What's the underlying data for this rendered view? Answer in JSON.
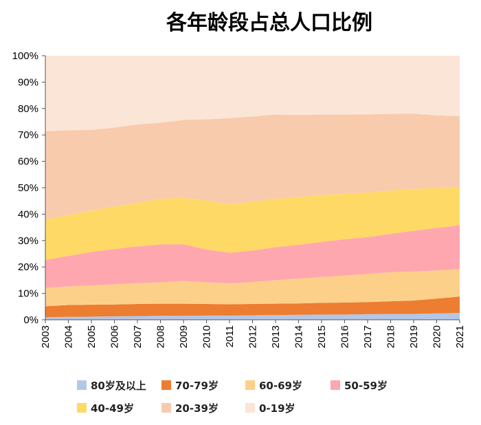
{
  "chart_data": {
    "type": "area",
    "stacked": true,
    "percent": true,
    "title": "各年龄段占总人口比例",
    "xlabel": "",
    "ylabel": "",
    "ylim": [
      0,
      100
    ],
    "y_ticks": [
      "0%",
      "10%",
      "20%",
      "30%",
      "40%",
      "50%",
      "60%",
      "70%",
      "80%",
      "90%",
      "100%"
    ],
    "categories": [
      "2003",
      "2004",
      "2005",
      "2006",
      "2007",
      "2008",
      "2009",
      "2010",
      "2011",
      "2012",
      "2013",
      "2014",
      "2015",
      "2016",
      "2017",
      "2018",
      "2019",
      "2020",
      "2021"
    ],
    "series": [
      {
        "name": "80岁及以上",
        "color": "#b4c7e7",
        "values": [
          1.0,
          1.1,
          1.2,
          1.3,
          1.4,
          1.5,
          1.5,
          1.6,
          1.6,
          1.7,
          1.8,
          1.9,
          2.0,
          2.0,
          2.1,
          2.2,
          2.2,
          2.4,
          2.6
        ]
      },
      {
        "name": "70-79岁",
        "color": "#ed7d31",
        "values": [
          4.1,
          4.5,
          4.5,
          4.5,
          4.6,
          4.6,
          4.6,
          4.4,
          4.3,
          4.3,
          4.3,
          4.3,
          4.4,
          4.5,
          4.6,
          4.8,
          5.1,
          5.6,
          6.2
        ]
      },
      {
        "name": "60-69岁",
        "color": "#fdd08a",
        "values": [
          7.0,
          7.0,
          7.3,
          7.6,
          7.9,
          8.1,
          8.6,
          8.2,
          7.9,
          8.3,
          8.9,
          9.4,
          9.8,
          10.2,
          10.7,
          11.0,
          11.0,
          10.7,
          10.4
        ]
      },
      {
        "name": "50-59岁",
        "color": "#ffa7ae",
        "values": [
          10.6,
          11.6,
          12.7,
          13.4,
          13.9,
          14.3,
          13.9,
          12.4,
          11.6,
          11.9,
          12.5,
          12.8,
          13.3,
          13.8,
          13.9,
          14.6,
          15.4,
          16.1,
          16.6
        ]
      },
      {
        "name": "40-49岁",
        "color": "#ffd966",
        "values": [
          15.2,
          15.5,
          15.7,
          16.1,
          16.5,
          17.3,
          17.6,
          18.6,
          18.4,
          18.5,
          18.3,
          18.1,
          17.8,
          17.2,
          16.9,
          16.4,
          15.9,
          15.1,
          14.2
        ]
      },
      {
        "name": "20-39岁",
        "color": "#f8cbad",
        "values": [
          33.5,
          32.1,
          30.5,
          29.9,
          29.7,
          28.8,
          29.5,
          30.7,
          32.6,
          32.3,
          31.9,
          31.1,
          30.4,
          30.0,
          29.6,
          29.0,
          28.5,
          27.5,
          27.1
        ]
      },
      {
        "name": "0-19岁",
        "color": "#fbe5d6",
        "values": [
          28.6,
          28.2,
          28.1,
          27.2,
          26.0,
          25.4,
          24.3,
          24.1,
          23.6,
          23.0,
          22.3,
          22.4,
          22.3,
          22.3,
          22.2,
          22.0,
          21.9,
          22.6,
          22.9
        ]
      }
    ],
    "legend": {
      "position": "bottom",
      "rows": [
        [
          "80岁及以上",
          "70-79岁",
          "60-69岁",
          "50-59岁"
        ],
        [
          "40-49岁",
          "20-39岁",
          "0-19岁"
        ]
      ]
    }
  }
}
